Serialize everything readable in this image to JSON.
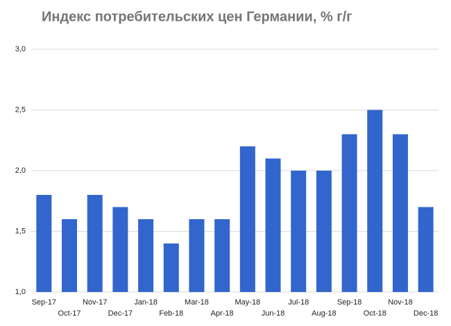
{
  "chart_data": {
    "type": "bar",
    "title": "Индекс потребительских цен Германии, % г/г",
    "categories": [
      "Sep-17",
      "Oct-17",
      "Nov-17",
      "Dec-17",
      "Jan-18",
      "Feb-18",
      "Mar-18",
      "Apr-18",
      "May-18",
      "Jun-18",
      "Jul-18",
      "Aug-18",
      "Sep-18",
      "Oct-18",
      "Nov-18",
      "Dec-18"
    ],
    "values": [
      1.8,
      1.6,
      1.8,
      1.7,
      1.6,
      1.4,
      1.6,
      1.6,
      2.2,
      2.1,
      2.0,
      2.0,
      2.3,
      2.5,
      2.3,
      1.7
    ],
    "color": "#3366cc",
    "ylim": [
      1,
      3
    ],
    "yticks": [
      {
        "value": 1,
        "label": "1,0"
      },
      {
        "value": 1.5,
        "label": "1,5"
      },
      {
        "value": 2,
        "label": "2,0"
      },
      {
        "value": 2.5,
        "label": "2,5"
      },
      {
        "value": 3,
        "label": "3,0"
      }
    ],
    "grid": true
  }
}
